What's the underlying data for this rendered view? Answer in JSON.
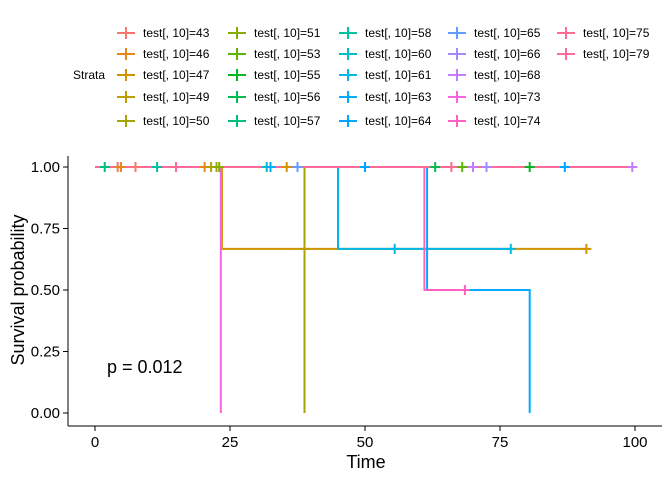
{
  "chart_data": {
    "type": "line",
    "subtype": "kaplan-meier",
    "xlabel": "Time",
    "ylabel": "Survival probability",
    "xlim": [
      0,
      100
    ],
    "ylim": [
      0,
      1
    ],
    "x_ticks": [
      "0",
      "25",
      "50",
      "75",
      "100"
    ],
    "y_ticks": [
      "0.00",
      "0.25",
      "0.50",
      "0.75",
      "1.00"
    ],
    "legend_title": "Strata",
    "legend_position": "top",
    "annotation": "p = 0.012",
    "grid": false,
    "series": [
      {
        "name": "test[, 10]=43",
        "color": "#F8766D",
        "steps": [
          [
            0,
            1
          ],
          [
            100,
            1
          ]
        ],
        "censor": [
          [
            4.2,
            1
          ],
          [
            7.5,
            1
          ]
        ]
      },
      {
        "name": "test[, 10]=46",
        "color": "#E7861B",
        "steps": [
          [
            0,
            1
          ],
          [
            100,
            1
          ]
        ],
        "censor": [
          [
            4.8,
            1
          ],
          [
            20.3,
            1
          ]
        ]
      },
      {
        "name": "test[, 10]=47",
        "color": "#D39200",
        "steps": [
          [
            0,
            1
          ],
          [
            23.5,
            1
          ],
          [
            23.5,
            0.667
          ],
          [
            91,
            0.667
          ]
        ],
        "censor": [
          [
            35.5,
            1
          ],
          [
            91,
            0.667
          ]
        ]
      },
      {
        "name": "test[, 10]=49",
        "color": "#BB9D00",
        "steps": [
          [
            0,
            1
          ],
          [
            100,
            1
          ]
        ],
        "censor": [
          [
            21.5,
            1
          ],
          [
            38.8,
            0.667
          ]
        ]
      },
      {
        "name": "test[, 10]=50",
        "color": "#A3A500",
        "steps": [
          [
            0,
            1
          ],
          [
            38.8,
            1
          ],
          [
            38.8,
            0
          ]
        ],
        "censor": [
          [
            22.5,
            1
          ]
        ]
      },
      {
        "name": "test[, 10]=51",
        "color": "#85AD00",
        "steps": [
          [
            0,
            1
          ],
          [
            100,
            1
          ]
        ],
        "censor": [
          [
            23,
            1
          ]
        ]
      },
      {
        "name": "test[, 10]=53",
        "color": "#5EB300",
        "steps": [
          [
            0,
            1
          ],
          [
            100,
            1
          ]
        ],
        "censor": [
          [
            68,
            1
          ]
        ]
      },
      {
        "name": "test[, 10]=55",
        "color": "#00B81F",
        "steps": [
          [
            0,
            1
          ],
          [
            100,
            1
          ]
        ],
        "censor": [
          [
            80.5,
            1
          ]
        ]
      },
      {
        "name": "test[, 10]=56",
        "color": "#00BB4E",
        "steps": [
          [
            0,
            1
          ],
          [
            100,
            1
          ]
        ],
        "censor": [
          [
            63,
            1
          ]
        ]
      },
      {
        "name": "test[, 10]=57",
        "color": "#00BF7D",
        "steps": [
          [
            0,
            1
          ],
          [
            100,
            1
          ]
        ],
        "censor": [
          [
            1.8,
            1
          ]
        ]
      },
      {
        "name": "test[, 10]=58",
        "color": "#00C1A3",
        "steps": [
          [
            0,
            1
          ],
          [
            100,
            1
          ]
        ],
        "censor": [
          [
            11.5,
            1
          ]
        ]
      },
      {
        "name": "test[, 10]=60",
        "color": "#00BFC4",
        "steps": [
          [
            0,
            1
          ],
          [
            100,
            1
          ]
        ],
        "censor": [
          [
            31.8,
            1
          ]
        ]
      },
      {
        "name": "test[, 10]=61",
        "color": "#00B8E7",
        "steps": [
          [
            0,
            1
          ],
          [
            45,
            1
          ],
          [
            45,
            0.667
          ],
          [
            77,
            0.667
          ]
        ],
        "censor": [
          [
            55.5,
            0.667
          ],
          [
            77,
            0.667
          ]
        ]
      },
      {
        "name": "test[, 10]=63",
        "color": "#00ABFD",
        "steps": [
          [
            0,
            1
          ],
          [
            61.5,
            1
          ],
          [
            61.5,
            0.5
          ],
          [
            80.5,
            0.5
          ],
          [
            80.5,
            0
          ]
        ],
        "censor": [
          [
            32.5,
            1
          ]
        ]
      },
      {
        "name": "test[, 10]=64",
        "color": "#00A5FF",
        "steps": [
          [
            0,
            1
          ],
          [
            100,
            1
          ]
        ],
        "censor": [
          [
            50,
            1
          ],
          [
            87,
            1
          ]
        ]
      },
      {
        "name": "test[, 10]=65",
        "color": "#619CFF",
        "steps": [
          [
            0,
            1
          ],
          [
            100,
            1
          ]
        ],
        "censor": [
          [
            37.5,
            1
          ]
        ]
      },
      {
        "name": "test[, 10]=66",
        "color": "#A58AFF",
        "steps": [
          [
            0,
            1
          ],
          [
            100,
            1
          ]
        ],
        "censor": [
          [
            72.5,
            1
          ]
        ]
      },
      {
        "name": "test[, 10]=68",
        "color": "#C77CFF",
        "steps": [
          [
            0,
            1
          ],
          [
            100,
            1
          ]
        ],
        "censor": [
          [
            70,
            1
          ],
          [
            99.5,
            1
          ]
        ]
      },
      {
        "name": "test[, 10]=73",
        "color": "#F564E3",
        "steps": [
          [
            0,
            1
          ],
          [
            23.3,
            1
          ],
          [
            23.3,
            0
          ]
        ],
        "censor": []
      },
      {
        "name": "test[, 10]=74",
        "color": "#FF61C3",
        "steps": [
          [
            0,
            1
          ],
          [
            61,
            1
          ],
          [
            61,
            0.5
          ],
          [
            68.5,
            0.5
          ]
        ],
        "censor": [
          [
            68.5,
            0.5
          ]
        ]
      },
      {
        "name": "test[, 10]=75",
        "color": "#FF6C91",
        "steps": [
          [
            0,
            1
          ],
          [
            100,
            1
          ]
        ],
        "censor": [
          [
            66,
            1
          ]
        ]
      },
      {
        "name": "test[, 10]=79",
        "color": "#FF6A98",
        "steps": [
          [
            0,
            1
          ],
          [
            100,
            1
          ]
        ],
        "censor": [
          [
            15,
            1
          ]
        ]
      }
    ]
  }
}
